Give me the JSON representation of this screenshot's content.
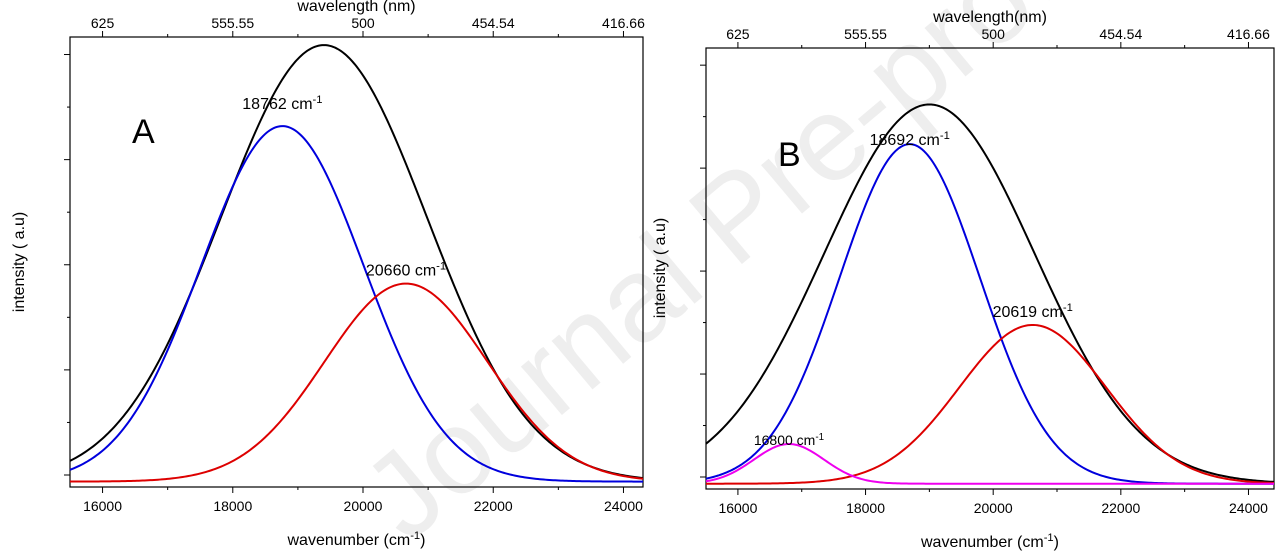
{
  "watermark": "Journal Pre-proof",
  "chart_data": [
    {
      "panel_label": "A",
      "type": "line",
      "xlabel_main": "wavenumber (cm",
      "xlabel_sup": "-1",
      "xlabel_close": ")",
      "ylabel": "intensity ( a.u)",
      "top_xlabel": "wavelength (nm)",
      "xlim": [
        15500,
        24300
      ],
      "ylim": [
        0,
        1.0
      ],
      "xticks": [
        16000,
        18000,
        20000,
        22000,
        24000
      ],
      "xtick_labels": [
        "16000",
        "18000",
        "20000",
        "22000",
        "24000"
      ],
      "top_ticks": [
        16000,
        18000,
        20000,
        22000,
        24000
      ],
      "top_tick_labels": [
        "625",
        "555.55",
        "500",
        "454.54",
        "416.66"
      ],
      "series": [
        {
          "color": "#000000",
          "center": 19400,
          "sigma": 1580,
          "amp": 0.97
        },
        {
          "color": "#0000dd",
          "center": 18762,
          "sigma": 1250,
          "amp": 0.79
        },
        {
          "color": "#dd0000",
          "center": 20660,
          "sigma": 1250,
          "amp": 0.44
        }
      ],
      "annotations": [
        {
          "text": "18762 cm",
          "sup": "-1",
          "x": 18762,
          "y": 0.84
        },
        {
          "text": "20660 cm",
          "sup": "-1",
          "x": 20660,
          "y": 0.47
        }
      ]
    },
    {
      "panel_label": "B",
      "type": "line",
      "xlabel_main": "wavenumber (cm",
      "xlabel_sup": "-1",
      "xlabel_close": ")",
      "ylabel": "intensity ( a.u)",
      "top_xlabel": "wavelength(nm)",
      "xlim": [
        15500,
        24400
      ],
      "ylim": [
        0,
        1.0
      ],
      "xticks": [
        16000,
        18000,
        20000,
        22000,
        24000
      ],
      "xtick_labels": [
        "16000",
        "18000",
        "20000",
        "22000",
        "24000"
      ],
      "top_ticks": [
        16000,
        18000,
        20000,
        22000,
        24000
      ],
      "top_tick_labels": [
        "625",
        "555.55",
        "500",
        "454.54",
        "416.66"
      ],
      "series": [
        {
          "color": "#000000",
          "center": 19000,
          "sigma": 1650,
          "amp": 0.86
        },
        {
          "color": "#0000dd",
          "center": 18692,
          "sigma": 1100,
          "amp": 0.77
        },
        {
          "color": "#dd0000",
          "center": 20619,
          "sigma": 1150,
          "amp": 0.36
        },
        {
          "color": "#ee00ee",
          "center": 16800,
          "sigma": 550,
          "amp": 0.09
        }
      ],
      "annotations": [
        {
          "text": "18692 cm",
          "sup": "-1",
          "x": 18692,
          "y": 0.78
        },
        {
          "text": "20619 cm",
          "sup": "-1",
          "x": 20619,
          "y": 0.39
        },
        {
          "text": "16800 cm",
          "sup": "-1",
          "x": 16800,
          "y": 0.1,
          "small": true
        }
      ]
    }
  ]
}
